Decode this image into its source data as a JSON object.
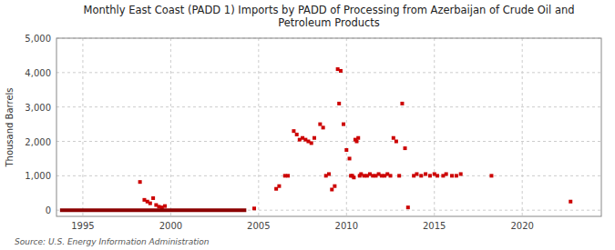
{
  "chart_data": {
    "type": "scatter",
    "title": "Monthly East Coast (PADD 1) Imports by PADD of Processing from Azerbaijan of Crude Oil and\nPetroleum Products",
    "ylabel": "Thousand Barrels",
    "annotations": [
      "Source: U.S. Energy Information Administration"
    ],
    "xlim": [
      1993.5,
      2024.5
    ],
    "ylim": [
      -180,
      5000
    ],
    "xticks": [
      1995,
      2000,
      2005,
      2010,
      2015,
      2020
    ],
    "yticks": [
      0,
      {
        "value": 1000,
        "label": "1,000"
      },
      {
        "value": 2000,
        "label": "2,000"
      },
      {
        "value": 3000,
        "label": "3,000"
      },
      {
        "value": 4000,
        "label": "4,000"
      },
      {
        "value": 5000,
        "label": "5,000"
      }
    ],
    "grid": true,
    "series": [
      {
        "type": "scatter",
        "color": "#CC0000",
        "marker": "square",
        "x": [
          1998.25,
          1998.5,
          1998.67,
          1998.83,
          1999.0,
          1999.17,
          1999.33,
          1999.5,
          1999.67,
          2004.75,
          2006.0,
          2006.17,
          2006.5,
          2006.67,
          2007.0,
          2007.17,
          2007.33,
          2007.5,
          2007.67,
          2007.83,
          2008.0,
          2008.17,
          2008.5,
          2008.67,
          2008.83,
          2009.0,
          2009.17,
          2009.33,
          2009.5,
          2009.58,
          2009.67,
          2009.83,
          2010.0,
          2010.17,
          2010.25,
          2010.33,
          2010.42,
          2010.5,
          2010.58,
          2010.67,
          2010.75,
          2010.83,
          2011.0,
          2011.17,
          2011.33,
          2011.5,
          2011.67,
          2011.83,
          2012.0,
          2012.17,
          2012.33,
          2012.5,
          2012.67,
          2012.83,
          2013.0,
          2013.17,
          2013.33,
          2013.5,
          2013.83,
          2014.0,
          2014.25,
          2014.5,
          2014.75,
          2015.0,
          2015.17,
          2015.5,
          2015.67,
          2016.0,
          2016.25,
          2016.5,
          2018.25,
          2022.75
        ],
        "values": [
          820,
          300,
          250,
          200,
          350,
          150,
          100,
          80,
          120,
          50,
          620,
          700,
          1000,
          1000,
          2300,
          2200,
          2050,
          2100,
          2050,
          2000,
          1950,
          2100,
          2500,
          2400,
          1000,
          1050,
          600,
          700,
          4100,
          3100,
          4050,
          2500,
          1750,
          1500,
          1000,
          1000,
          950,
          2050,
          2000,
          2100,
          1000,
          1050,
          1000,
          1000,
          1050,
          1000,
          1000,
          1050,
          1000,
          1000,
          1050,
          1000,
          2100,
          2000,
          1000,
          3100,
          1800,
          80,
          1000,
          1050,
          1000,
          1050,
          1000,
          1050,
          1000,
          1000,
          1050,
          1000,
          1000,
          1050,
          1000,
          250
        ]
      },
      {
        "type": "line",
        "color": "#8B0000",
        "x": [
          1993.7,
          2004.3
        ],
        "values": [
          0,
          0
        ]
      }
    ]
  }
}
